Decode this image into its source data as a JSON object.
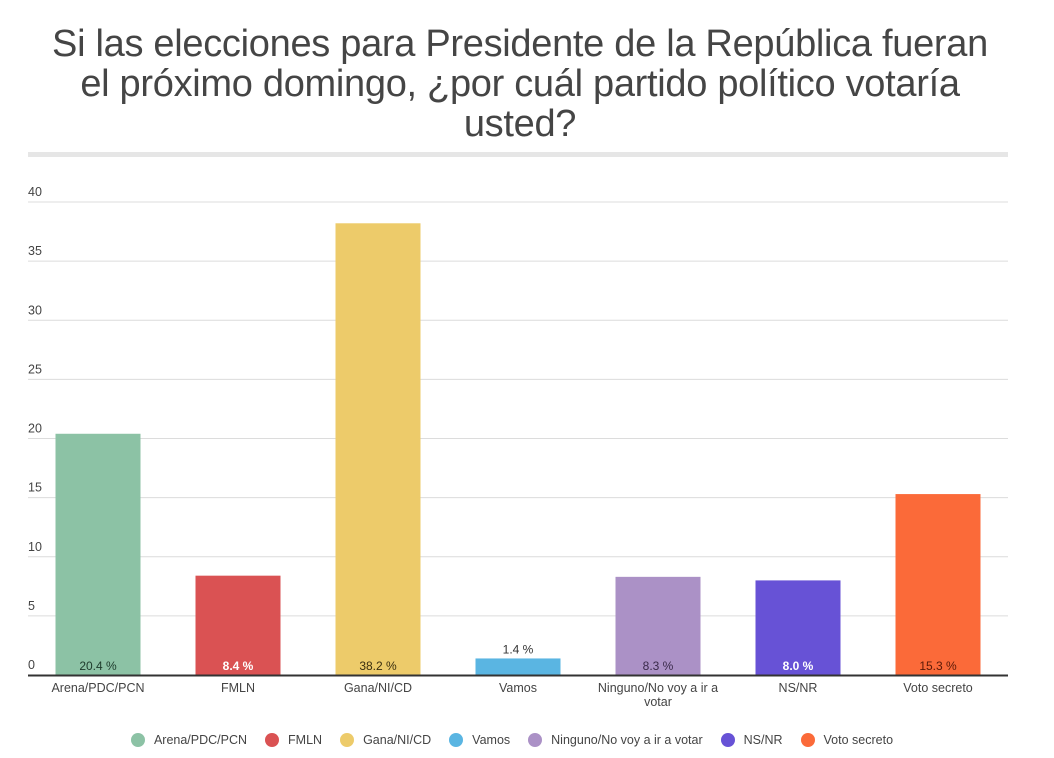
{
  "chart_data": {
    "type": "bar",
    "title": "Si las elecciones para Presidente de la República fueran el próximo domingo, ¿por cuál partido político votaría usted?",
    "title_lines": [
      "Si las elecciones para Presidente de la República fueran",
      "el próximo domingo, ¿por cuál partido político votaría",
      "usted?"
    ],
    "categories": [
      "Arena/PDC/PCN",
      "FMLN",
      "Gana/NI/CD",
      "Vamos",
      "Ninguno/No voy a ir a votar",
      "NS/NR",
      "Voto secreto"
    ],
    "category_label_lines": [
      [
        "Arena/PDC/PCN"
      ],
      [
        "FMLN"
      ],
      [
        "Gana/NI/CD"
      ],
      [
        "Vamos"
      ],
      [
        "Ninguno/No voy a ir a",
        "votar"
      ],
      [
        "NS/NR"
      ],
      [
        "Voto secreto"
      ]
    ],
    "values": [
      20.4,
      8.4,
      38.2,
      1.4,
      8.3,
      8.0,
      15.3
    ],
    "data_labels": [
      "20.4 %",
      "8.4 %",
      "38.2 %",
      "1.4 %",
      "8.3 %",
      "8.0 %",
      "15.3 %"
    ],
    "data_label_colors": [
      "#1e3a2c",
      "#ffffff",
      "#3a2e10",
      "#333333",
      "#3a2a4a",
      "#ffffff",
      "#5a1a08"
    ],
    "data_label_bold": [
      false,
      true,
      false,
      false,
      false,
      true,
      false
    ],
    "colors": [
      "#8cc2a5",
      "#da5253",
      "#edcb6a",
      "#5ab5e2",
      "#ab91c6",
      "#6752d6",
      "#fb6a39"
    ],
    "xlabel": "",
    "ylabel": "",
    "ylim": [
      0,
      40
    ],
    "yticks": [
      0,
      5,
      10,
      15,
      20,
      25,
      30,
      35,
      40
    ],
    "grid": true,
    "legend_position": "bottom",
    "legend": [
      "Arena/PDC/PCN",
      "FMLN",
      "Gana/NI/CD",
      "Vamos",
      "Ninguno/No voy a ir a votar",
      "NS/NR",
      "Voto secreto"
    ]
  }
}
